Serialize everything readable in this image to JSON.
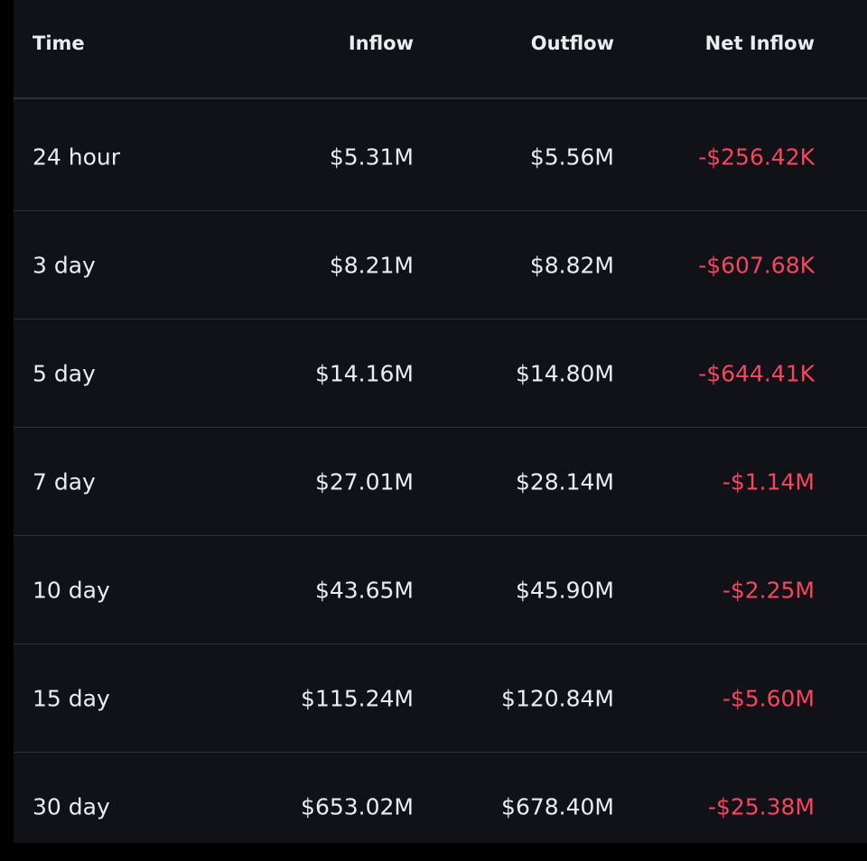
{
  "colors": {
    "background": "#111217",
    "text": "#eaecef",
    "negative": "#f6465d",
    "divider": "#2b2f36"
  },
  "table": {
    "headers": {
      "time": "Time",
      "inflow": "Inflow",
      "outflow": "Outflow",
      "net_inflow": "Net Inflow"
    },
    "rows": [
      {
        "time": "24 hour",
        "inflow": "$5.31M",
        "outflow": "$5.56M",
        "net_inflow": "-$256.42K"
      },
      {
        "time": "3 day",
        "inflow": "$8.21M",
        "outflow": "$8.82M",
        "net_inflow": "-$607.68K"
      },
      {
        "time": "5 day",
        "inflow": "$14.16M",
        "outflow": "$14.80M",
        "net_inflow": "-$644.41K"
      },
      {
        "time": "7 day",
        "inflow": "$27.01M",
        "outflow": "$28.14M",
        "net_inflow": "-$1.14M"
      },
      {
        "time": "10 day",
        "inflow": "$43.65M",
        "outflow": "$45.90M",
        "net_inflow": "-$2.25M"
      },
      {
        "time": "15 day",
        "inflow": "$115.24M",
        "outflow": "$120.84M",
        "net_inflow": "-$5.60M"
      },
      {
        "time": "30 day",
        "inflow": "$653.02M",
        "outflow": "$678.40M",
        "net_inflow": "-$25.38M"
      }
    ]
  }
}
